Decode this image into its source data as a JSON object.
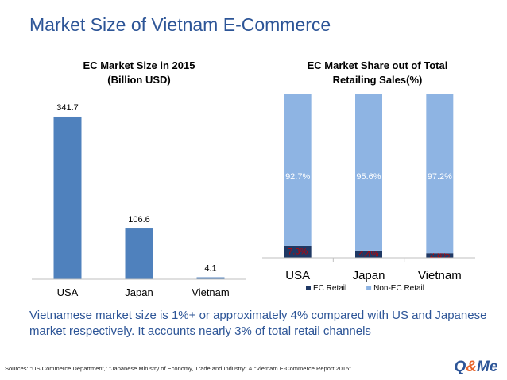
{
  "slide": {
    "title": "Market Size of Vietnam E-Commerce",
    "summary": "Vietnamese market size is 1%+ or approximately 4% compared with US and Japanese market respectively. It accounts nearly 3% of total retail channels",
    "sources": "Sources: “US Commerce Department,” “Japanese Ministry of Economy, Trade and Industry” & “Vietnam E-Commerce Report 2015”",
    "logo": {
      "left": "Q",
      "amp": "&",
      "right": "Me"
    }
  },
  "chart_data": [
    {
      "type": "bar",
      "title_line1": "EC Market Size in 2015",
      "title_line2": "(Billion USD)",
      "categories": [
        "USA",
        "Japan",
        "Vietnam"
      ],
      "values": [
        341.7,
        106.6,
        4.1
      ],
      "value_labels": [
        "341.7",
        "106.6",
        "4.1"
      ],
      "ylim": [
        0,
        400
      ],
      "color": "#4f81bd",
      "grid": false
    },
    {
      "type": "bar",
      "stacked": true,
      "percent": true,
      "title_line1": "EC Market Share out of Total",
      "title_line2": "Retailing Sales(%)",
      "categories": [
        "USA",
        "Japan",
        "Vietnam"
      ],
      "series": [
        {
          "name": "EC Retail",
          "values": [
            7.3,
            4.4,
            2.8
          ],
          "labels": [
            "7.3%",
            "4.4%",
            "2.8%"
          ],
          "color": "#1f3864",
          "label_color": "#c00000"
        },
        {
          "name": "Non-EC Retail",
          "values": [
            92.7,
            95.6,
            97.2
          ],
          "labels": [
            "92.7%",
            "95.6%",
            "97.2%"
          ],
          "color": "#8eb4e3",
          "label_color": "#ffffff"
        }
      ],
      "ylim": [
        0,
        100
      ],
      "legend": "bottom",
      "grid": false
    }
  ]
}
